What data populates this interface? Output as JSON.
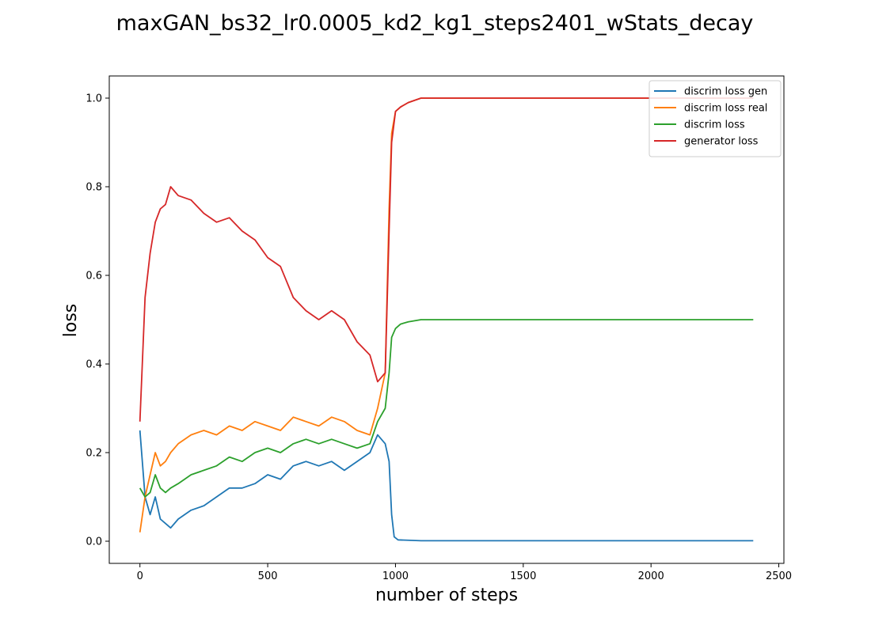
{
  "chart_data": {
    "type": "line",
    "title": "maxGAN_bs32_lr0.0005_kd2_kg1_steps2401_wStats_decay",
    "xlabel": "number of steps",
    "ylabel": "loss",
    "xlim": [
      -120,
      2520
    ],
    "ylim": [
      -0.05,
      1.05
    ],
    "xticks": [
      0,
      500,
      1000,
      1500,
      2000,
      2500
    ],
    "yticks": [
      0.0,
      0.2,
      0.4,
      0.6,
      0.8,
      1.0
    ],
    "xtick_labels": [
      "0",
      "500",
      "1000",
      "1500",
      "2000",
      "2500"
    ],
    "ytick_labels": [
      "0.0",
      "0.2",
      "0.4",
      "0.6",
      "0.8",
      "1.0"
    ],
    "legend_position": "top-right",
    "grid": false,
    "series": [
      {
        "name": "discrim loss gen",
        "color": "#1f77b4",
        "x": [
          0,
          20,
          40,
          60,
          80,
          100,
          120,
          150,
          200,
          250,
          300,
          350,
          400,
          450,
          500,
          550,
          600,
          650,
          700,
          750,
          800,
          850,
          900,
          930,
          960,
          975,
          985,
          995,
          1010,
          1100,
          1500,
          2000,
          2400
        ],
        "values": [
          0.25,
          0.1,
          0.06,
          0.1,
          0.05,
          0.04,
          0.03,
          0.05,
          0.07,
          0.08,
          0.1,
          0.12,
          0.12,
          0.13,
          0.15,
          0.14,
          0.17,
          0.18,
          0.17,
          0.18,
          0.16,
          0.18,
          0.2,
          0.24,
          0.22,
          0.18,
          0.06,
          0.01,
          0.003,
          0.001,
          0.001,
          0.001,
          0.001
        ]
      },
      {
        "name": "discrim loss real",
        "color": "#ff7f0e",
        "x": [
          0,
          20,
          40,
          60,
          80,
          100,
          120,
          150,
          200,
          250,
          300,
          350,
          400,
          450,
          500,
          550,
          600,
          650,
          700,
          750,
          800,
          850,
          900,
          930,
          960,
          975,
          985,
          1000,
          1020,
          1050,
          1100,
          1500,
          2000,
          2400
        ],
        "values": [
          0.02,
          0.1,
          0.15,
          0.2,
          0.17,
          0.18,
          0.2,
          0.22,
          0.24,
          0.25,
          0.24,
          0.26,
          0.25,
          0.27,
          0.26,
          0.25,
          0.28,
          0.27,
          0.26,
          0.28,
          0.27,
          0.25,
          0.24,
          0.3,
          0.38,
          0.75,
          0.92,
          0.97,
          0.98,
          0.99,
          1.0,
          1.0,
          1.0,
          1.0
        ]
      },
      {
        "name": "discrim loss",
        "color": "#2ca02c",
        "x": [
          0,
          20,
          40,
          60,
          80,
          100,
          120,
          150,
          200,
          250,
          300,
          350,
          400,
          450,
          500,
          550,
          600,
          650,
          700,
          750,
          800,
          850,
          900,
          930,
          960,
          975,
          985,
          1000,
          1020,
          1050,
          1100,
          1500,
          2000,
          2400
        ],
        "values": [
          0.12,
          0.1,
          0.11,
          0.15,
          0.12,
          0.11,
          0.12,
          0.13,
          0.15,
          0.16,
          0.17,
          0.19,
          0.18,
          0.2,
          0.21,
          0.2,
          0.22,
          0.23,
          0.22,
          0.23,
          0.22,
          0.21,
          0.22,
          0.27,
          0.3,
          0.38,
          0.46,
          0.48,
          0.49,
          0.495,
          0.5,
          0.5,
          0.5,
          0.5
        ]
      },
      {
        "name": "generator loss",
        "color": "#d62728",
        "x": [
          0,
          20,
          40,
          60,
          80,
          100,
          120,
          150,
          200,
          250,
          300,
          350,
          400,
          450,
          500,
          550,
          600,
          650,
          700,
          750,
          800,
          850,
          900,
          930,
          960,
          975,
          985,
          1000,
          1020,
          1050,
          1100,
          1500,
          2000,
          2400
        ],
        "values": [
          0.27,
          0.55,
          0.65,
          0.72,
          0.75,
          0.76,
          0.8,
          0.78,
          0.77,
          0.74,
          0.72,
          0.73,
          0.7,
          0.68,
          0.64,
          0.62,
          0.55,
          0.52,
          0.5,
          0.52,
          0.5,
          0.45,
          0.42,
          0.36,
          0.38,
          0.7,
          0.9,
          0.97,
          0.98,
          0.99,
          1.0,
          1.0,
          1.0,
          1.0
        ]
      }
    ]
  }
}
